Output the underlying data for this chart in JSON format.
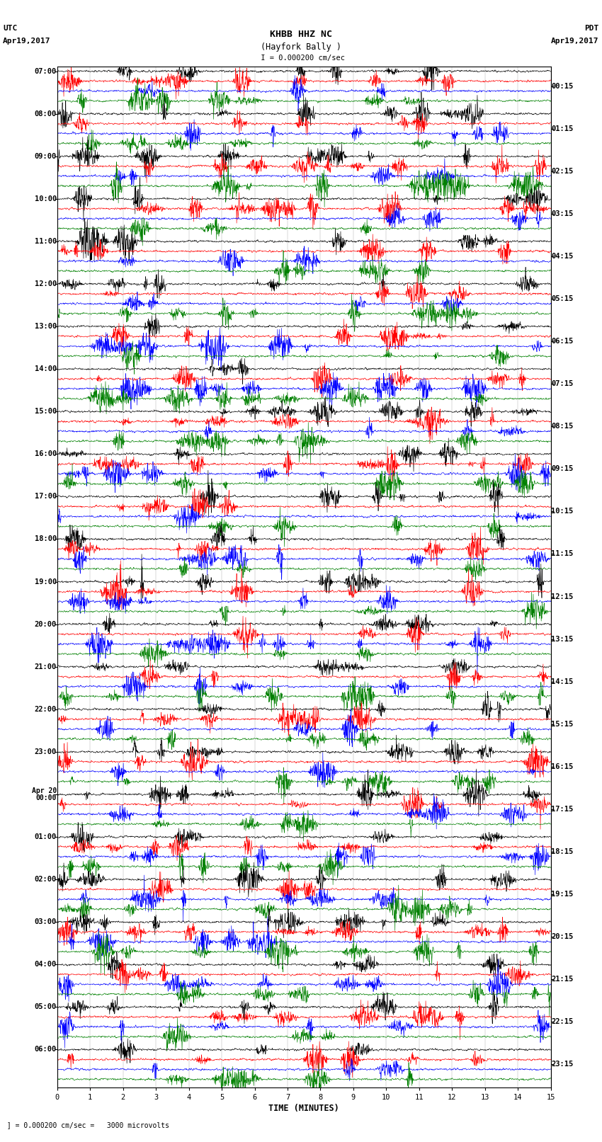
{
  "title_line1": "KHBB HHZ NC",
  "title_line2": "(Hayfork Bally )",
  "scale_label": "= 0.000200 cm/sec",
  "bottom_label": "= 0.000200 cm/sec =   3000 microvolts",
  "xlabel": "TIME (MINUTES)",
  "left_header_line1": "UTC",
  "left_header_line2": "Apr19,2017",
  "right_header_line1": "PDT",
  "right_header_line2": "Apr19,2017",
  "left_times": [
    "07:00",
    "08:00",
    "09:00",
    "10:00",
    "11:00",
    "12:00",
    "13:00",
    "14:00",
    "15:00",
    "16:00",
    "17:00",
    "18:00",
    "19:00",
    "20:00",
    "21:00",
    "22:00",
    "23:00",
    "Apr 20\n00:00",
    "01:00",
    "02:00",
    "03:00",
    "04:00",
    "05:00",
    "06:00"
  ],
  "right_times": [
    "00:15",
    "01:15",
    "02:15",
    "03:15",
    "04:15",
    "05:15",
    "06:15",
    "07:15",
    "08:15",
    "09:15",
    "10:15",
    "11:15",
    "12:15",
    "13:15",
    "14:15",
    "15:15",
    "16:15",
    "17:15",
    "18:15",
    "19:15",
    "20:15",
    "21:15",
    "22:15",
    "23:15"
  ],
  "num_rows": 24,
  "traces_per_row": 4,
  "colors": [
    "black",
    "red",
    "blue",
    "green"
  ],
  "fig_width": 8.5,
  "fig_height": 16.13,
  "dpi": 100,
  "time_minutes": 15,
  "samples_per_trace": 1800,
  "background_color": "white"
}
